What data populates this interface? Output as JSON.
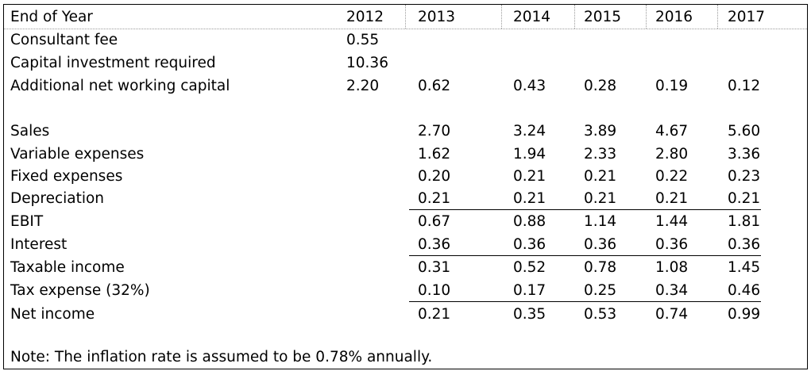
{
  "header": {
    "label": "End of Year",
    "years": [
      "2012",
      "2013",
      "2014",
      "2015",
      "2016",
      "2017"
    ]
  },
  "rows": [
    {
      "label": "Consultant fee",
      "values": [
        "0.55",
        "",
        "",
        "",
        "",
        ""
      ]
    },
    {
      "label": "Capital investment required",
      "values": [
        "10.36",
        "",
        "",
        "",
        "",
        ""
      ]
    },
    {
      "label": "Additional net working capital",
      "values": [
        "2.20",
        "0.62",
        "0.43",
        "0.28",
        "0.19",
        "0.12"
      ]
    },
    {
      "label": "",
      "values": [
        "",
        "",
        "",
        "",
        "",
        ""
      ]
    },
    {
      "label": "Sales",
      "values": [
        "",
        "2.70",
        "3.24",
        "3.89",
        "4.67",
        "5.60"
      ]
    },
    {
      "label": "Variable expenses",
      "values": [
        "",
        "1.62",
        "1.94",
        "2.33",
        "2.80",
        "3.36"
      ]
    },
    {
      "label": "Fixed expenses",
      "values": [
        "",
        "0.20",
        "0.21",
        "0.21",
        "0.22",
        "0.23"
      ]
    },
    {
      "label": "Depreciation",
      "values": [
        "",
        "0.21",
        "0.21",
        "0.21",
        "0.21",
        "0.21"
      ]
    },
    {
      "label": "EBIT",
      "values": [
        "",
        "0.67",
        "0.88",
        "1.14",
        "1.44",
        "1.81"
      ]
    },
    {
      "label": "Interest",
      "values": [
        "",
        "0.36",
        "0.36",
        "0.36",
        "0.36",
        "0.36"
      ]
    },
    {
      "label": "Taxable income",
      "values": [
        "",
        "0.31",
        "0.52",
        "0.78",
        "1.08",
        "1.45"
      ]
    },
    {
      "label": "Tax expense (32%)",
      "values": [
        "",
        "0.10",
        "0.17",
        "0.25",
        "0.34",
        "0.46"
      ]
    },
    {
      "label": "Net income",
      "values": [
        "",
        "0.21",
        "0.35",
        "0.53",
        "0.74",
        "0.99"
      ]
    }
  ],
  "note": "Note: The inflation rate is assumed to be 0.78% annually."
}
